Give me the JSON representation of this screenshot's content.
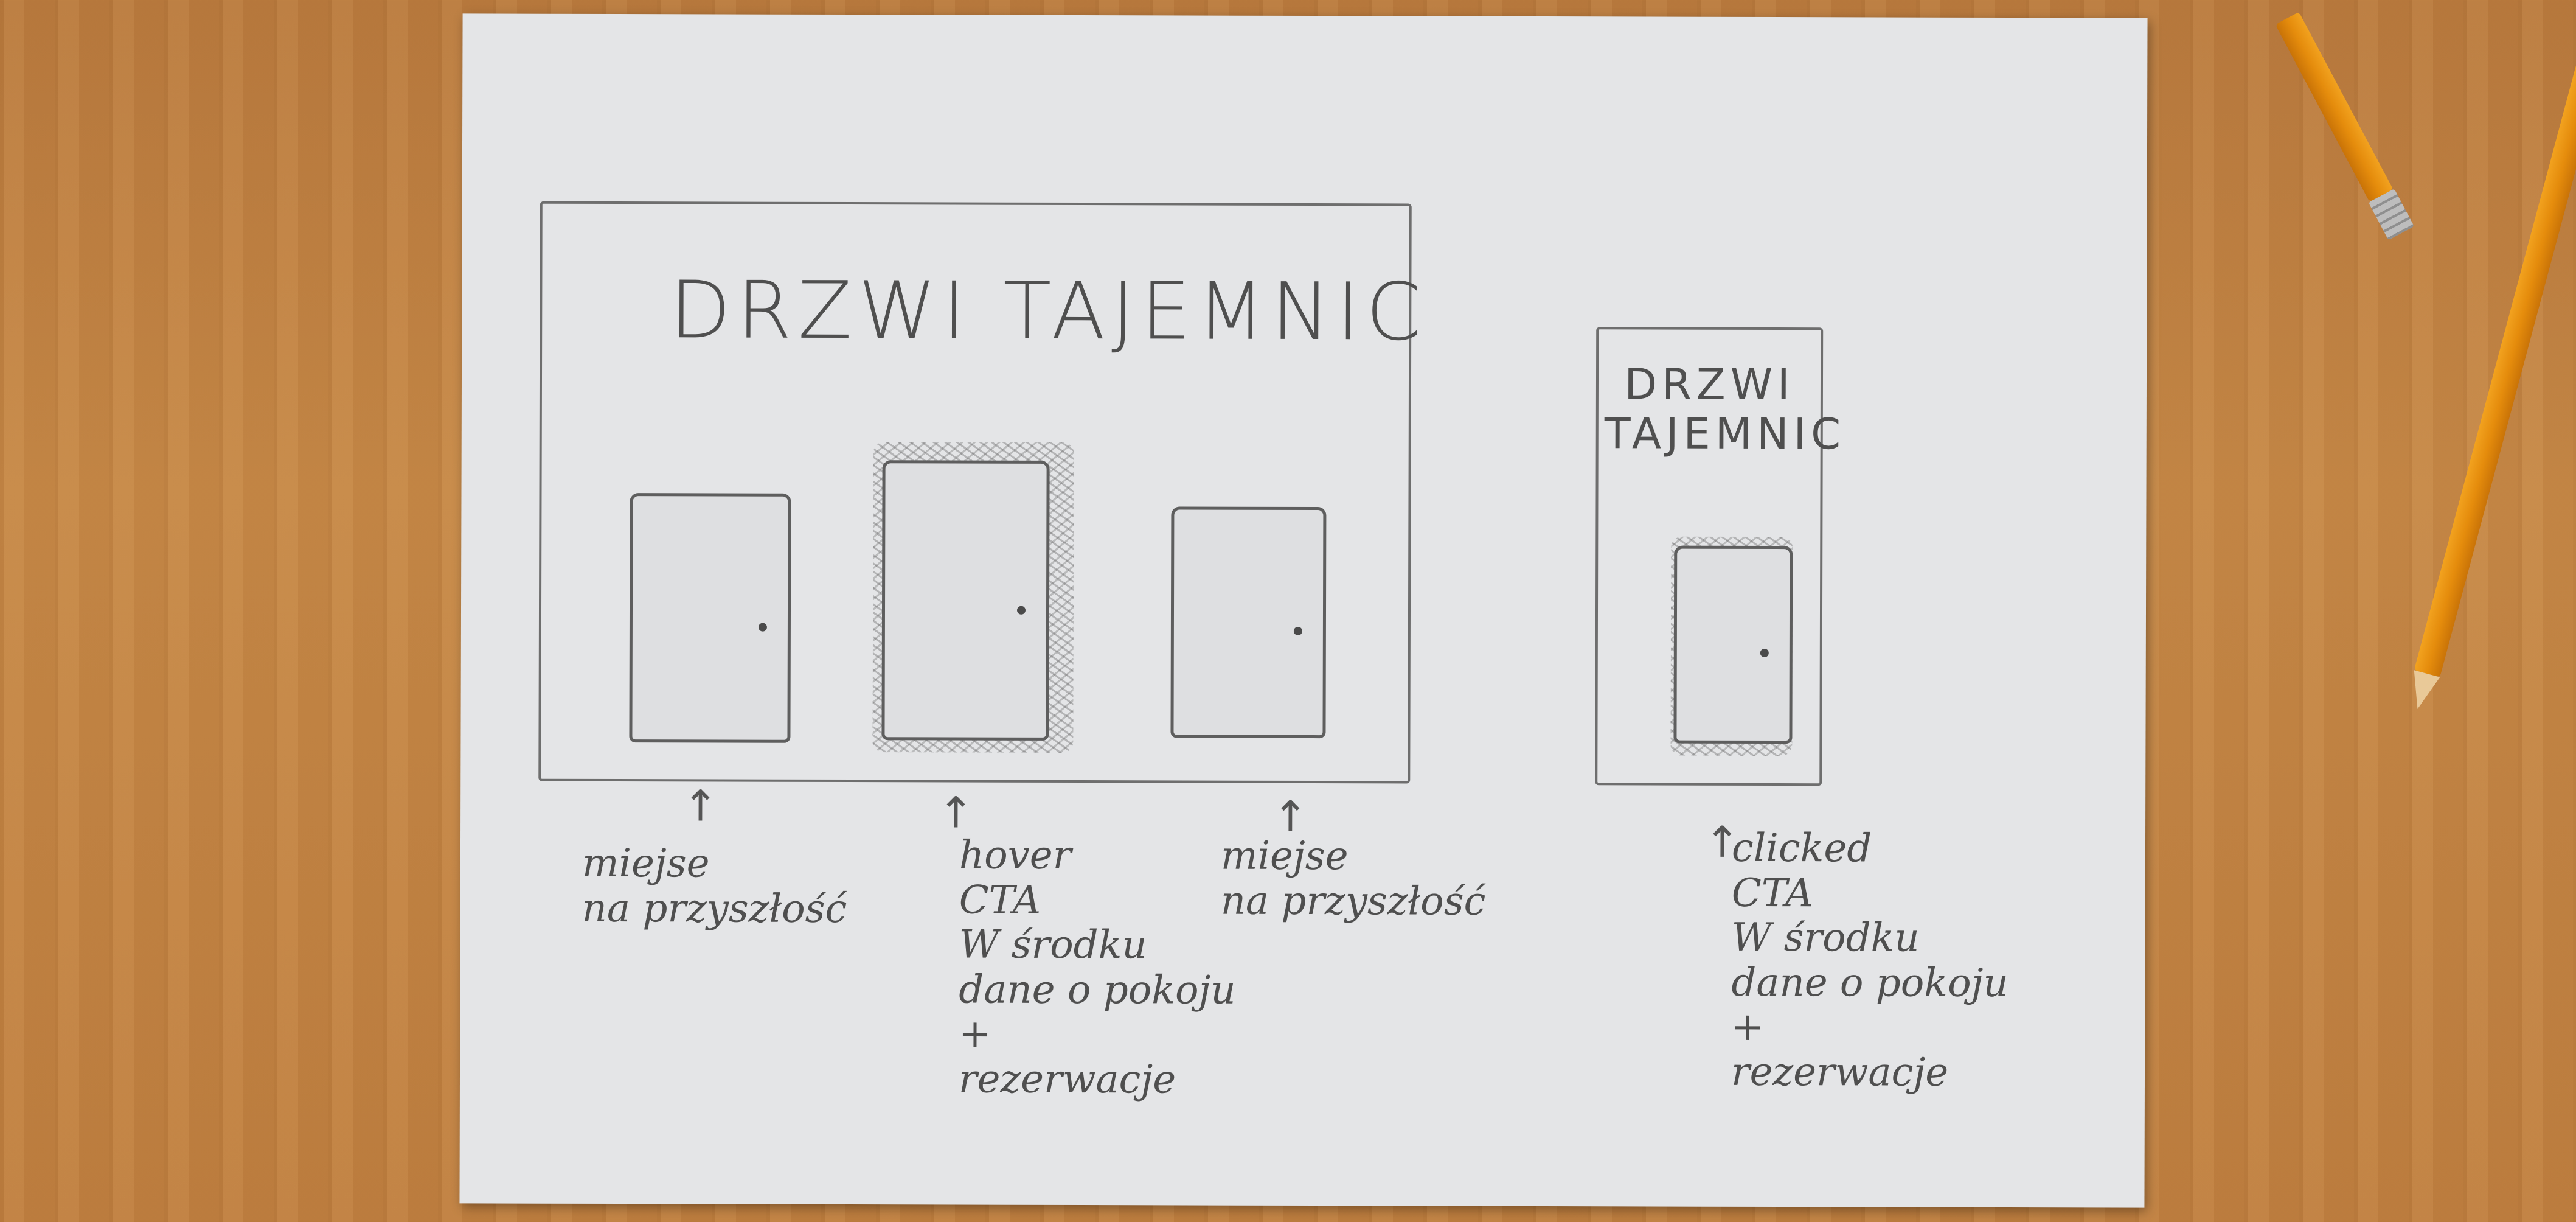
{
  "desktop_sketch": {
    "title": "DRZWI TAJEMNIC",
    "notes": {
      "left": "miejse\nna przyszłość",
      "center": "hover\nCTA\nW środku\ndane o pokoju\n+\nrezerwacje",
      "right": "miejse\nna przyszłość"
    }
  },
  "mobile_sketch": {
    "title": "DRZWI\nTAJEMNIC",
    "note": "clicked\nCTA\nW środku\ndane o pokoju\n+\nrezerwacje"
  },
  "colors": {
    "desk": "#c68847",
    "paper": "#e4e5e7",
    "pencil": "#e58c0c",
    "graphite": "#5e5e5e"
  }
}
